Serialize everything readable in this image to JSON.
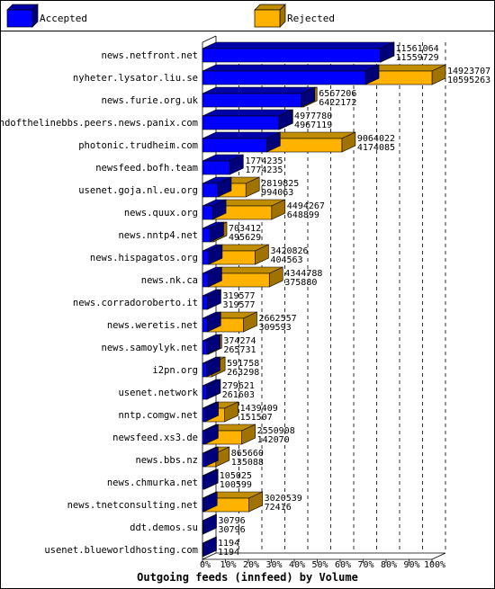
{
  "legend": {
    "accepted_label": "Accepted",
    "rejected_label": "Rejected"
  },
  "colors": {
    "accepted_front": "#0000ff",
    "accepted_top": "#0000aa",
    "accepted_side": "#00007a",
    "rejected_front": "#ffb300",
    "rejected_top": "#c08c00",
    "rejected_side": "#a07300",
    "grid": "#000000"
  },
  "chart_data": {
    "type": "bar",
    "orientation": "horizontal",
    "stacking": "overlay",
    "title": "Outgoing feeds (innfeed) by Volume",
    "xlim": [
      0,
      100
    ],
    "x_ticks": [
      "0%",
      "10%",
      "20%",
      "30%",
      "40%",
      "50%",
      "60%",
      "70%",
      "80%",
      "90%",
      "100%"
    ],
    "max_value": 14923707,
    "categories": [
      "news.netfront.net",
      "nyheter.lysator.liu.se",
      "news.furie.org.uk",
      "endofthelinebbs.peers.news.panix.com",
      "photonic.trudheim.com",
      "newsfeed.bofh.team",
      "usenet.goja.nl.eu.org",
      "news.quux.org",
      "news.nntp4.net",
      "news.hispagatos.org",
      "news.nk.ca",
      "news.corradoroberto.it",
      "news.weretis.net",
      "news.samoylyk.net",
      "i2pn.org",
      "usenet.network",
      "nntp.comgw.net",
      "newsfeed.xs3.de",
      "news.bbs.nz",
      "news.chmurka.net",
      "news.tnetconsulting.net",
      "ddt.demos.su",
      "usenet.blueworldhosting.com"
    ],
    "series": [
      {
        "name": "Accepted",
        "values": [
          11559729,
          10595263,
          6422172,
          4967119,
          4174085,
          1774235,
          994063,
          648899,
          495629,
          404563,
          375880,
          319577,
          309593,
          265731,
          263298,
          261603,
          151507,
          142070,
          135088,
          100599,
          72416,
          30796,
          1194
        ]
      },
      {
        "name": "Rejected",
        "values": [
          11561064,
          14923707,
          6567206,
          4977780,
          9064022,
          1774235,
          2819825,
          4494267,
          703412,
          3420826,
          4344788,
          319577,
          2662557,
          374274,
          591758,
          279621,
          1439409,
          2550908,
          865660,
          105025,
          3020539,
          30796,
          1194
        ]
      }
    ],
    "value_labels_top": [
      "11561064",
      "14923707",
      "6567206",
      "4977780",
      "9064022",
      "1774235",
      "2819825",
      "4494267",
      "703412",
      "3420826",
      "4344788",
      "319577",
      "2662557",
      "374274",
      "591758",
      "279621",
      "1439409",
      "2550908",
      "865660",
      "105025",
      "3020539",
      "30796",
      "1194"
    ],
    "value_labels_bottom": [
      "11559729",
      "10595263",
      "6422172",
      "4967119",
      "4174085",
      "1774235",
      "994063",
      "648899",
      "495629",
      "404563",
      "375880",
      "319577",
      "309593",
      "265731",
      "263298",
      "261603",
      "151507",
      "142070",
      "135088",
      "100599",
      "72416",
      "30796",
      "1194"
    ]
  }
}
